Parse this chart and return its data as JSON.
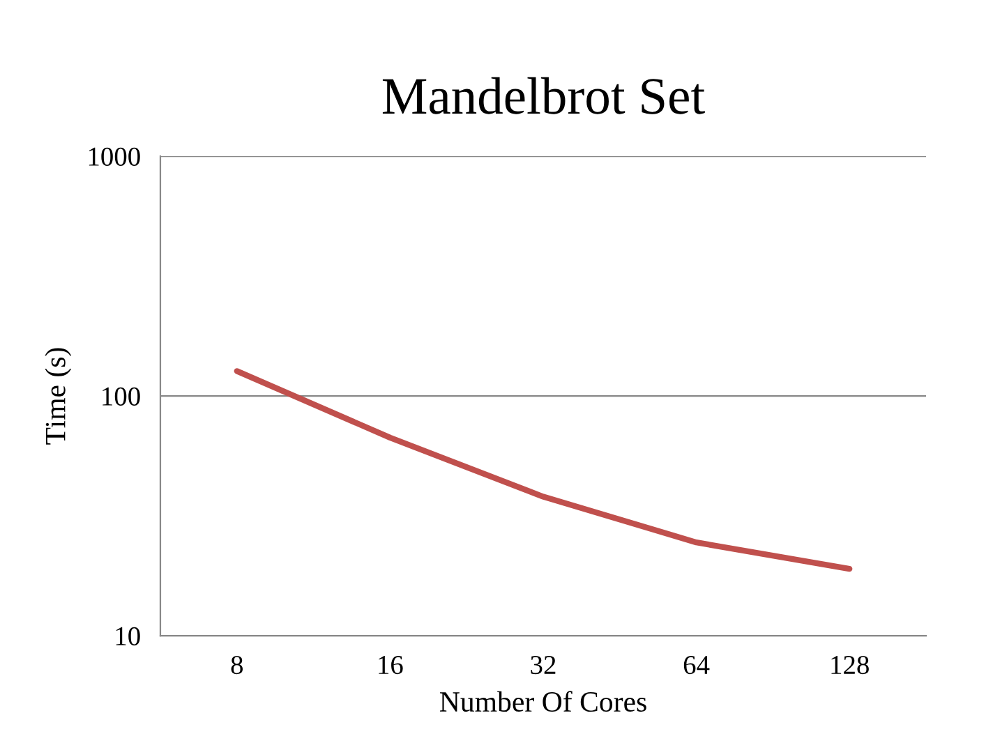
{
  "chart_data": {
    "type": "line",
    "title": "Mandelbrot Set",
    "xlabel": "Number Of Cores",
    "ylabel": "Time (s)",
    "categories": [
      "8",
      "16",
      "32",
      "64",
      "128"
    ],
    "series": [
      {
        "color": "#c0504d",
        "values": [
          127,
          67,
          38,
          24.5,
          19
        ]
      }
    ],
    "log": "y",
    "ylim": [
      10,
      1000
    ],
    "yticks": [
      10,
      100,
      1000
    ],
    "grid": "y",
    "marker": "none",
    "line_style": "solid"
  }
}
